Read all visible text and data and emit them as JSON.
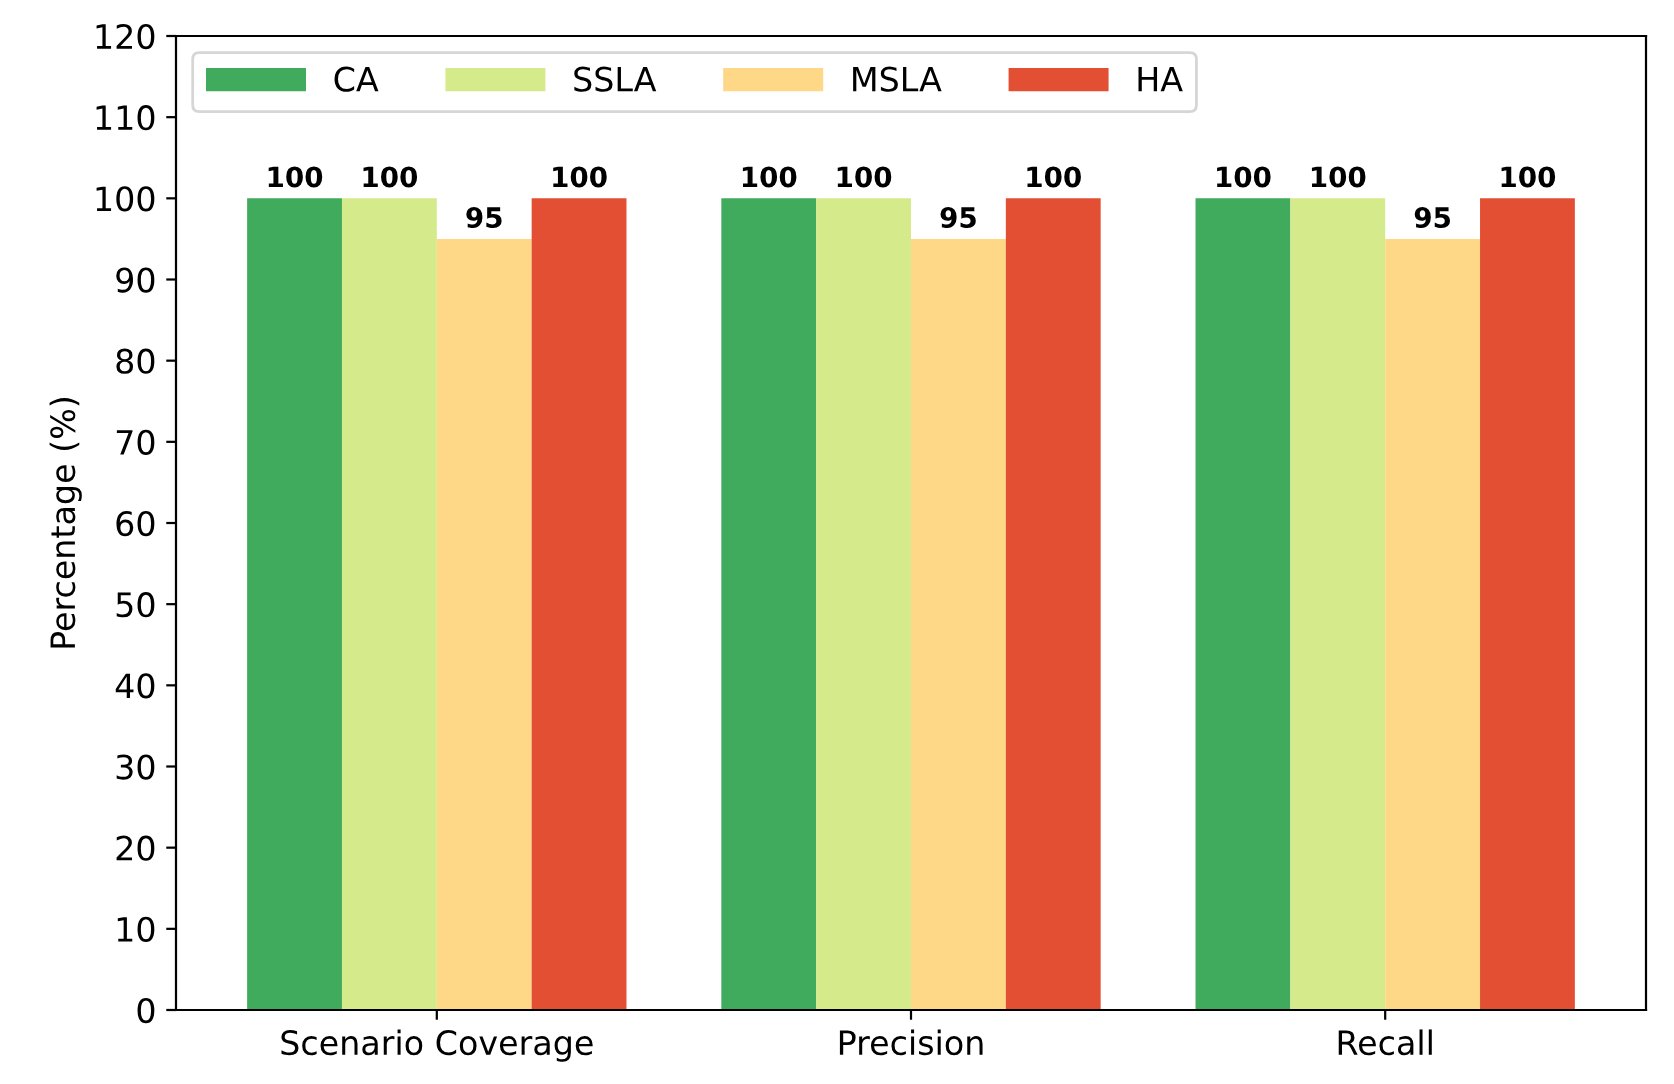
{
  "chart_data": {
    "type": "bar",
    "ylabel": "Percentage (%)",
    "categories": [
      "Scenario Coverage",
      "Precision",
      "Recall"
    ],
    "series": [
      {
        "name": "CA",
        "color": "#41ab5d",
        "values": [
          100,
          100,
          100
        ]
      },
      {
        "name": "SSLA",
        "color": "#d4ea8b",
        "values": [
          100,
          100,
          100
        ]
      },
      {
        "name": "MSLA",
        "color": "#fed787",
        "values": [
          95,
          95,
          95
        ]
      },
      {
        "name": "HA",
        "color": "#e34f33",
        "values": [
          100,
          100,
          100
        ]
      }
    ],
    "ylim": [
      0,
      120
    ],
    "yticks": [
      0,
      10,
      20,
      30,
      40,
      50,
      60,
      70,
      80,
      90,
      100,
      110,
      120
    ],
    "data_labels": true,
    "legend": "top left",
    "grid": false
  }
}
